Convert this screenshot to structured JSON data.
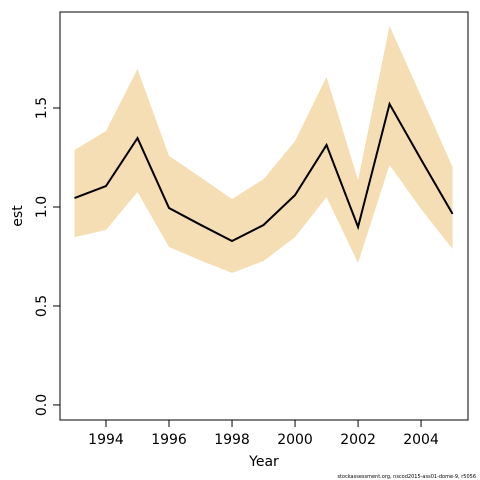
{
  "chart_data": {
    "type": "line",
    "x_label": "Year",
    "y_label": "est",
    "footnote": "stockassessment.org, nscod2015-ass01-dome-9, r5056",
    "x": [
      1993,
      1994,
      1995,
      1996,
      1997,
      1998,
      1999,
      2000,
      2001,
      2002,
      2003,
      2004,
      2005
    ],
    "values": [
      1.045,
      1.106,
      1.348,
      0.995,
      0.91,
      0.828,
      0.909,
      1.06,
      1.313,
      0.899,
      1.52,
      1.24,
      0.965
    ],
    "upper": [
      1.288,
      1.384,
      1.697,
      1.258,
      1.15,
      1.04,
      1.141,
      1.333,
      1.657,
      1.136,
      1.914,
      1.56,
      1.202
    ],
    "lower": [
      0.848,
      0.884,
      1.076,
      0.798,
      0.73,
      0.667,
      0.727,
      0.848,
      1.05,
      0.717,
      1.212,
      0.99,
      0.788
    ],
    "color": "#000000",
    "band_color": "#f5deb3",
    "xlim": [
      1992.54,
      2005.49
    ],
    "ylim": [
      -0.076,
      1.985
    ],
    "xticks": [
      1994,
      1996,
      1998,
      2000,
      2002,
      2004
    ],
    "yticks": [
      {
        "value": 0,
        "label": "0.0"
      },
      {
        "value": 0.5,
        "label": "0.5"
      },
      {
        "value": 1,
        "label": "1.0"
      },
      {
        "value": 1.5,
        "label": "1.5"
      }
    ]
  }
}
